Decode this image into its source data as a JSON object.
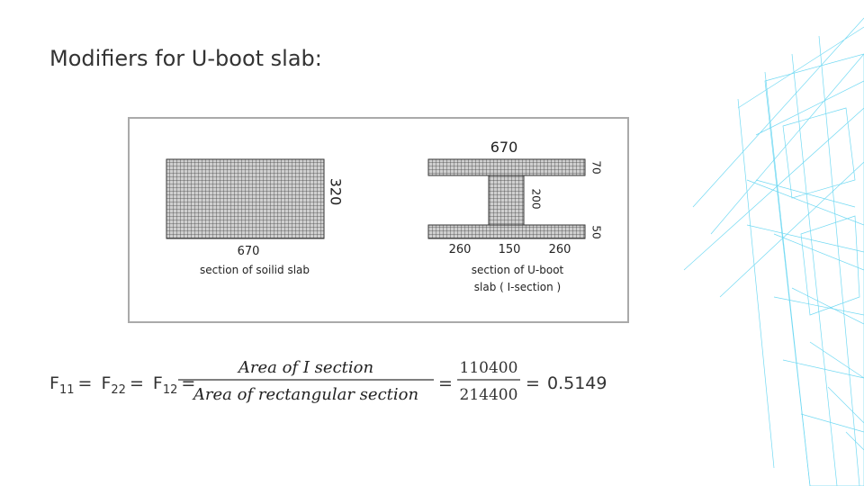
{
  "title": "Modifiers for U-boot slab:",
  "figure": {
    "solid_slab": {
      "width_label": 670,
      "height_label": 320,
      "caption": "section of soilid slab"
    },
    "i_section": {
      "width_label": 670,
      "top_flange_label": 70,
      "web_label": 200,
      "bottom_flange_label": 50,
      "bottom_labels": [
        260,
        150,
        260
      ],
      "caption_lines": [
        "section of U-boot",
        "slab ( I-section )"
      ]
    }
  },
  "formula": {
    "lhs": [
      {
        "symbol": "F",
        "subscript": "11"
      },
      {
        "symbol": "F",
        "subscript": "22"
      },
      {
        "symbol": "F",
        "subscript": "12"
      }
    ],
    "equals": "=",
    "fraction1": {
      "numerator": "Area of I section",
      "denominator": "Area of rectangular section"
    },
    "fraction2": {
      "numerator": 110400,
      "denominator": 214400
    },
    "result": 0.5149
  }
}
